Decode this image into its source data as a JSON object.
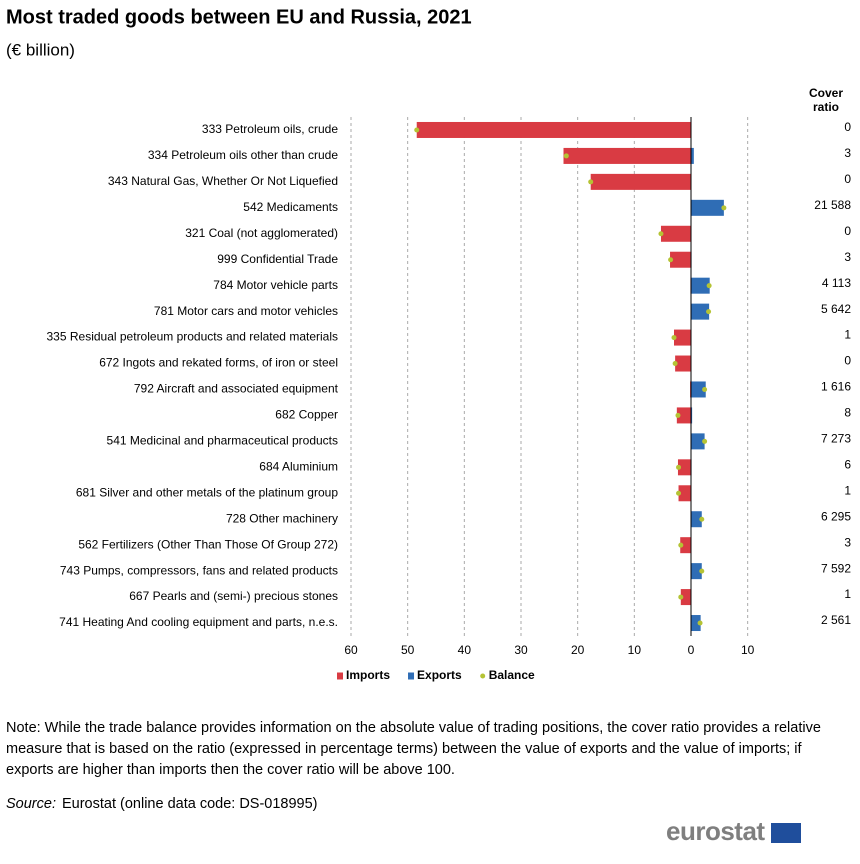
{
  "chart_data": {
    "type": "bar",
    "orientation": "horizontal",
    "title": "Most traded goods between EU and Russia, 2021",
    "subtitle": "(€ billion)",
    "categories": [
      "333 Petroleum oils, crude",
      "334 Petroleum oils other than crude",
      "343 Natural Gas, Whether Or Not Liquefied",
      "542 Medicaments",
      "321 Coal (not agglomerated)",
      "999 Confidential Trade",
      "784 Motor vehicle parts",
      "781 Motor cars and motor vehicles",
      "335 Residual petroleum products and related materials",
      "672 Ingots and rekated forms, of iron or steel",
      "792 Aircraft and associated equipment",
      "682 Copper",
      "541 Medicinal and pharmaceutical products",
      "684 Aluminium",
      "681 Silver and other metals of the platinum group",
      "728 Other machinery",
      "562 Fertilizers (Other Than Those Of Group 272)",
      "743 Pumps, compressors, fans and related products",
      "667 Pearls and (semi-) precious stones",
      "741 Heating And cooling equipment and parts, n.e.s."
    ],
    "series": [
      {
        "name": "Imports",
        "color": "#d93b43",
        "mark": "bar",
        "values": [
          -48.4,
          -22.5,
          -17.7,
          0,
          -5.3,
          -3.7,
          -0.1,
          -0.06,
          -3.0,
          -2.8,
          -0.16,
          -2.5,
          -0.03,
          -2.3,
          -2.2,
          -0.03,
          -1.9,
          -0.03,
          -1.8,
          -0.07
        ]
      },
      {
        "name": "Exports",
        "color": "#2f6db5",
        "mark": "bar",
        "values": [
          0,
          0.5,
          0,
          5.8,
          0,
          0.1,
          3.3,
          3.2,
          0,
          0,
          2.6,
          0.2,
          2.4,
          0.1,
          0,
          1.9,
          0.06,
          1.9,
          0,
          1.7
        ]
      },
      {
        "name": "Balance",
        "color": "#b5c334",
        "mark": "point",
        "values": [
          -48.4,
          -22.0,
          -17.7,
          5.8,
          -5.3,
          -3.6,
          3.2,
          3.1,
          -3.0,
          -2.8,
          2.4,
          -2.3,
          2.4,
          -2.2,
          -2.2,
          1.9,
          -1.8,
          1.9,
          -1.8,
          1.6
        ]
      }
    ],
    "xlim": [
      -60,
      15
    ],
    "xticks": [
      {
        "value": -60,
        "label": "60"
      },
      {
        "value": -50,
        "label": "50"
      },
      {
        "value": -40,
        "label": "40"
      },
      {
        "value": -30,
        "label": "30"
      },
      {
        "value": -20,
        "label": "20"
      },
      {
        "value": -10,
        "label": "10"
      },
      0,
      10
    ],
    "grid": true,
    "legend": "bottom",
    "cover_ratio": {
      "title": "Cover ratio",
      "values": [
        0,
        3,
        0,
        21588,
        0,
        3,
        4113,
        5642,
        1,
        0,
        1616,
        8,
        7273,
        6,
        1,
        6295,
        3,
        7592,
        1,
        2561
      ],
      "value_labels": [
        "0",
        "3",
        "0",
        "21 588",
        "0",
        "3",
        "4 113",
        "5 642",
        "1",
        "0",
        "1 616",
        "8",
        "7 273",
        "6",
        "1",
        "6 295",
        "3",
        "7 592",
        "1",
        "2 561"
      ]
    }
  },
  "note": "Note: While the trade balance provides information on the absolute value of trading positions, the cover ratio provides a relative measure that is based on the ratio (expressed in percentage terms) between the value of exports and the value of imports; if exports are higher than imports then the cover ratio will be above 100.",
  "source": {
    "label": "Source:",
    "text": "Eurostat (online data code: DS-018995)"
  },
  "logo": "eurostat"
}
